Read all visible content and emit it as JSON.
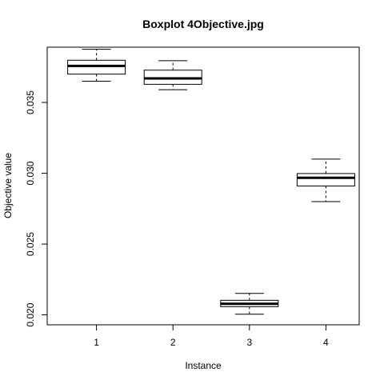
{
  "chart_data": {
    "type": "boxplot",
    "title": "Boxplot 4Objective.jpg",
    "xlabel": "Instance",
    "ylabel": "Objective value",
    "categories": [
      "1",
      "2",
      "3",
      "4"
    ],
    "ylim": [
      0.0193,
      0.0389
    ],
    "yticks": [
      0.02,
      0.025,
      0.03,
      0.035
    ],
    "ytick_labels": [
      "0.020",
      "0.025",
      "0.030",
      "0.035"
    ],
    "boxes": [
      {
        "label": "1",
        "min": 0.0365,
        "q1": 0.037,
        "median": 0.03758,
        "q3": 0.03798,
        "max": 0.03875
      },
      {
        "label": "2",
        "min": 0.0359,
        "q1": 0.03628,
        "median": 0.0367,
        "q3": 0.03728,
        "max": 0.03795
      },
      {
        "label": "3",
        "min": 0.02005,
        "q1": 0.02058,
        "median": 0.02078,
        "q3": 0.02103,
        "max": 0.02152
      },
      {
        "label": "4",
        "min": 0.028,
        "q1": 0.0291,
        "median": 0.02968,
        "q3": 0.02998,
        "max": 0.031
      }
    ],
    "grid": false,
    "legend": "none"
  }
}
